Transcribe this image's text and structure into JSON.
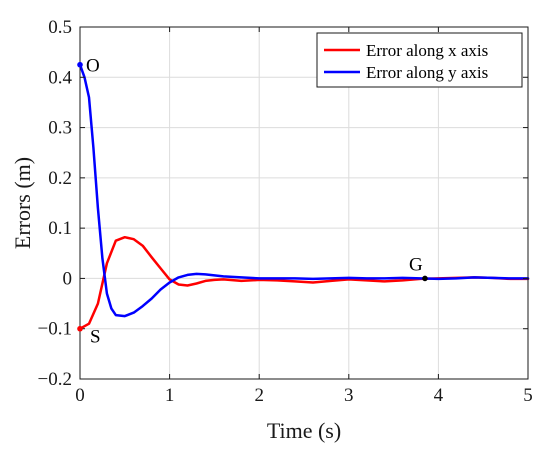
{
  "chart_data": {
    "type": "line",
    "title": "",
    "xlabel": "Time (s)",
    "ylabel": "Errors (m)",
    "xlim": [
      0,
      5
    ],
    "ylim": [
      -0.2,
      0.5
    ],
    "xticks": [
      0,
      1,
      2,
      3,
      4,
      5
    ],
    "xtick_labels": [
      "0",
      "1",
      "2",
      "3",
      "4",
      "5"
    ],
    "yticks": [
      -0.2,
      -0.1,
      0,
      0.1,
      0.2,
      0.3,
      0.4,
      0.5
    ],
    "ytick_labels": [
      "−0.2",
      "−0.1",
      "0",
      "0.1",
      "0.2",
      "0.3",
      "0.4",
      "0.5"
    ],
    "grid": true,
    "legend_position": "top-right",
    "series": [
      {
        "name": "Error along x axis",
        "color": "#ff0000",
        "x": [
          0,
          0.1,
          0.2,
          0.3,
          0.4,
          0.5,
          0.6,
          0.7,
          0.8,
          0.9,
          1.0,
          1.1,
          1.2,
          1.3,
          1.4,
          1.5,
          1.6,
          1.8,
          2.0,
          2.2,
          2.4,
          2.6,
          2.8,
          3.0,
          3.2,
          3.4,
          3.6,
          3.8,
          4.0,
          4.2,
          4.4,
          4.6,
          4.8,
          5.0
        ],
        "y": [
          -0.1,
          -0.09,
          -0.05,
          0.03,
          0.075,
          0.082,
          0.078,
          0.065,
          0.042,
          0.02,
          -0.002,
          -0.012,
          -0.014,
          -0.01,
          -0.005,
          -0.003,
          -0.002,
          -0.005,
          -0.003,
          -0.004,
          -0.006,
          -0.008,
          -0.005,
          -0.002,
          -0.004,
          -0.006,
          -0.004,
          -0.001,
          0.0,
          0.001,
          0.002,
          0.001,
          -0.001,
          -0.001
        ]
      },
      {
        "name": "Error along y axis",
        "color": "#0000ff",
        "x": [
          0,
          0.05,
          0.1,
          0.15,
          0.2,
          0.25,
          0.3,
          0.35,
          0.4,
          0.5,
          0.6,
          0.7,
          0.8,
          0.9,
          1.0,
          1.1,
          1.2,
          1.3,
          1.4,
          1.5,
          1.6,
          1.8,
          2.0,
          2.2,
          2.4,
          2.6,
          2.8,
          3.0,
          3.2,
          3.4,
          3.6,
          3.8,
          4.0,
          4.2,
          4.4,
          4.6,
          4.8,
          5.0
        ],
        "y": [
          0.425,
          0.4,
          0.36,
          0.26,
          0.14,
          0.04,
          -0.03,
          -0.06,
          -0.073,
          -0.075,
          -0.068,
          -0.055,
          -0.04,
          -0.022,
          -0.008,
          0.002,
          0.007,
          0.009,
          0.008,
          0.006,
          0.004,
          0.002,
          0.0,
          0.0,
          0.0,
          -0.001,
          0.0,
          0.001,
          0.0,
          0.0,
          0.001,
          0.0,
          -0.001,
          0.0,
          0.002,
          0.001,
          0.0,
          0.0
        ]
      }
    ],
    "annotations": [
      {
        "label": "O",
        "x": 0.0,
        "y": 0.425
      },
      {
        "label": "S",
        "x": 0.0,
        "y": -0.1
      },
      {
        "label": "G",
        "x": 3.85,
        "y": 0.0
      }
    ]
  }
}
